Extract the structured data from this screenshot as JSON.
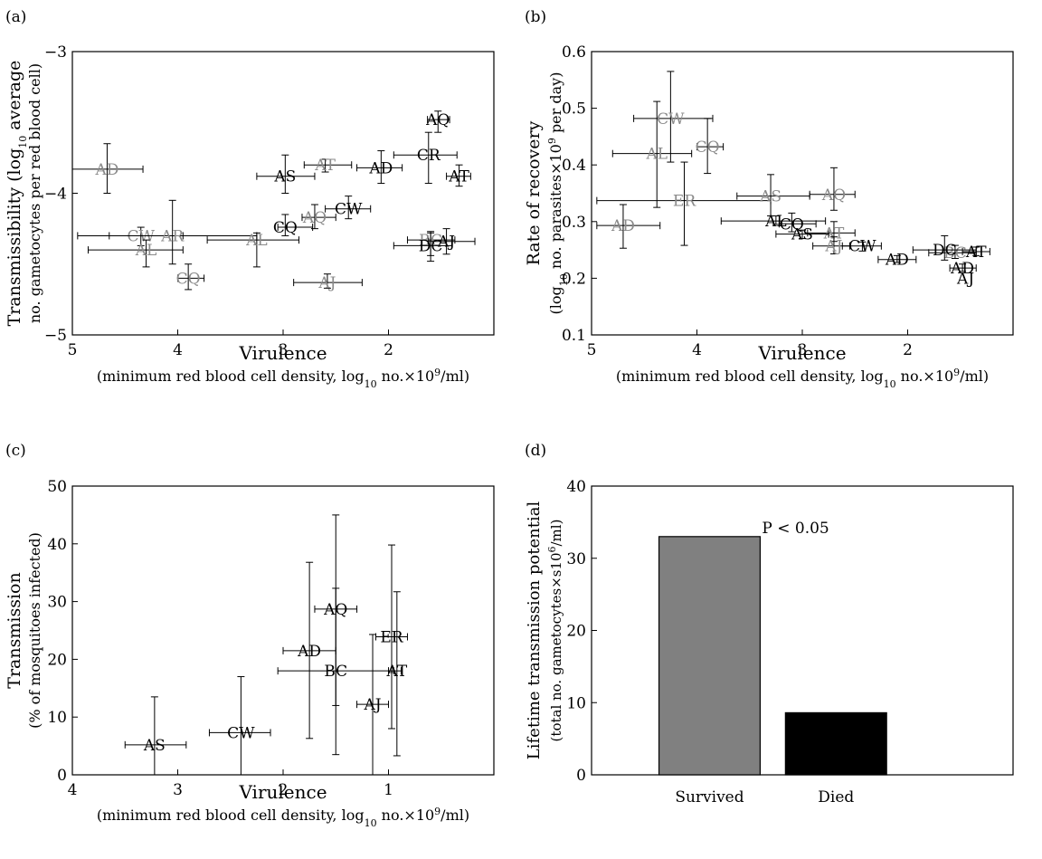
{
  "figure": {
    "panels": [
      "(a)",
      "(b)",
      "(c)",
      "(d)"
    ]
  },
  "colors": {
    "black": "#000000",
    "gray": "#8a8a8a",
    "bar_survived": "#808080",
    "bar_died": "#000000"
  },
  "chart_data": [
    {
      "panel": "(a)",
      "type": "scatter",
      "xlabel": "Virulence",
      "xlabel2_parts": [
        "(minimum red blood cell density, log",
        "10",
        " no.×10",
        "9",
        "/ml)"
      ],
      "ylabel_line1_parts": [
        "Transmissibility (log",
        "10",
        " average"
      ],
      "ylabel_line2": "no. gametocytes per red blood cell)",
      "xlim": [
        5,
        1
      ],
      "xreversed": true,
      "ylim": [
        -5,
        -3
      ],
      "xticks": [
        5,
        4,
        3,
        2
      ],
      "xticklabels": [
        "5",
        "4",
        "3",
        "2"
      ],
      "yticks": [
        -5,
        -4,
        -3
      ],
      "yticklabels": [
        "−5",
        "−4",
        "−3"
      ],
      "points": [
        {
          "label": "AD",
          "color": "gray",
          "x": 4.67,
          "y": -3.83,
          "xlo": 5.0,
          "xhi": 4.33,
          "ylo": -4.0,
          "yhi": -3.65
        },
        {
          "label": "CW",
          "color": "gray",
          "x": 4.35,
          "y": -4.3,
          "xlo": 4.65,
          "xhi": 3.95,
          "ylo": -4.37,
          "yhi": -4.24
        },
        {
          "label": "AR",
          "color": "gray",
          "x": 4.05,
          "y": -4.3,
          "xlo": 4.95,
          "xhi": 3.25,
          "ylo": -4.5,
          "yhi": -4.05
        },
        {
          "label": "AL",
          "color": "gray",
          "x": 4.3,
          "y": -4.4,
          "xlo": 4.85,
          "xhi": 3.95,
          "ylo": -4.52,
          "yhi": -4.33
        },
        {
          "label": "CQ",
          "color": "gray",
          "x": 3.9,
          "y": -4.6,
          "xlo": 4.0,
          "xhi": 3.75,
          "ylo": -4.68,
          "yhi": -4.5
        },
        {
          "label": "AL",
          "color": "gray",
          "x": 3.25,
          "y": -4.33,
          "xlo": 3.72,
          "xhi": 2.85,
          "ylo": -4.52,
          "yhi": -4.28
        },
        {
          "label": "AS",
          "color": "black",
          "x": 2.98,
          "y": -3.88,
          "xlo": 3.25,
          "xhi": 2.7,
          "ylo": -4.0,
          "yhi": -3.73
        },
        {
          "label": "CQ",
          "color": "black",
          "x": 2.98,
          "y": -4.24,
          "xlo": 3.05,
          "xhi": 2.72,
          "ylo": -4.3,
          "yhi": -4.15
        },
        {
          "label": "AQ",
          "color": "gray",
          "x": 2.7,
          "y": -4.17,
          "xlo": 2.82,
          "xhi": 2.5,
          "ylo": -4.25,
          "yhi": -4.08
        },
        {
          "label": "AT",
          "color": "gray",
          "x": 2.6,
          "y": -3.8,
          "xlo": 2.8,
          "xhi": 2.35,
          "ylo": -3.85,
          "yhi": -3.76
        },
        {
          "label": "CW",
          "color": "black",
          "x": 2.38,
          "y": -4.11,
          "xlo": 2.6,
          "xhi": 2.17,
          "ylo": -4.18,
          "yhi": -4.02
        },
        {
          "label": "AJ",
          "color": "gray",
          "x": 2.58,
          "y": -4.63,
          "xlo": 2.9,
          "xhi": 2.25,
          "ylo": -4.67,
          "yhi": -4.57
        },
        {
          "label": "AD",
          "color": "black",
          "x": 2.07,
          "y": -3.82,
          "xlo": 2.3,
          "xhi": 1.87,
          "ylo": -3.93,
          "yhi": -3.7
        },
        {
          "label": "CR",
          "color": "black",
          "x": 1.62,
          "y": -3.73,
          "xlo": 1.95,
          "xhi": 1.35,
          "ylo": -3.93,
          "yhi": -3.57
        },
        {
          "label": "AQ",
          "color": "black",
          "x": 1.53,
          "y": -3.48,
          "xlo": 1.63,
          "xhi": 1.42,
          "ylo": -3.57,
          "yhi": -3.42
        },
        {
          "label": "AT",
          "color": "black",
          "x": 1.33,
          "y": -3.88,
          "xlo": 1.45,
          "xhi": 1.22,
          "ylo": -3.95,
          "yhi": -3.8
        },
        {
          "label": "BC",
          "color": "gray",
          "x": 1.6,
          "y": -4.33,
          "xlo": 1.82,
          "xhi": 1.37,
          "ylo": -4.44,
          "yhi": -4.27
        },
        {
          "label": "AJ",
          "color": "black",
          "x": 1.45,
          "y": -4.34,
          "xlo": 1.62,
          "xhi": 1.18,
          "ylo": -4.43,
          "yhi": -4.25
        },
        {
          "label": "DC",
          "color": "black",
          "x": 1.6,
          "y": -4.37,
          "xlo": 1.95,
          "xhi": 1.4,
          "ylo": -4.48,
          "yhi": -4.28
        }
      ]
    },
    {
      "panel": "(b)",
      "type": "scatter",
      "xlabel": "Virulence",
      "xlabel2_parts": [
        "(minimum red blood cell density, log",
        "10",
        " no.×10",
        "9",
        "/ml)"
      ],
      "ylabel_line1": "Rate of recovery",
      "ylabel_line2_parts": [
        "(log",
        "10",
        " no. parasites×10",
        "9",
        " per day)"
      ],
      "xlim": [
        5,
        1
      ],
      "xreversed": true,
      "ylim": [
        0.1,
        0.6
      ],
      "xticks": [
        5,
        4,
        3,
        2
      ],
      "xticklabels": [
        "5",
        "4",
        "3",
        "2"
      ],
      "yticks": [
        0.1,
        0.2,
        0.3,
        0.4,
        0.5,
        0.6
      ],
      "yticklabels": [
        "0.1",
        "0.2",
        "0.3",
        "0.4",
        "0.5",
        "0.6"
      ],
      "points": [
        {
          "label": "CW",
          "color": "gray",
          "x": 4.25,
          "y": 0.482,
          "xlo": 4.6,
          "xhi": 3.85,
          "ylo": 0.405,
          "yhi": 0.565
        },
        {
          "label": "CQ",
          "color": "gray",
          "x": 3.9,
          "y": 0.432,
          "xlo": 4.0,
          "xhi": 3.75,
          "ylo": 0.385,
          "yhi": 0.482
        },
        {
          "label": "AL",
          "color": "gray",
          "x": 4.38,
          "y": 0.42,
          "xlo": 4.8,
          "xhi": 4.05,
          "ylo": 0.325,
          "yhi": 0.512
        },
        {
          "label": "ER",
          "color": "gray",
          "x": 4.12,
          "y": 0.337,
          "xlo": 4.95,
          "xhi": 3.3,
          "ylo": 0.258,
          "yhi": 0.405
        },
        {
          "label": "AS",
          "color": "gray",
          "x": 3.3,
          "y": 0.345,
          "xlo": 3.62,
          "xhi": 2.93,
          "ylo": 0.31,
          "yhi": 0.383
        },
        {
          "label": "AQ",
          "color": "gray",
          "x": 2.7,
          "y": 0.348,
          "xlo": 2.93,
          "xhi": 2.5,
          "ylo": 0.32,
          "yhi": 0.395
        },
        {
          "label": "AD",
          "color": "gray",
          "x": 4.7,
          "y": 0.293,
          "xlo": 4.95,
          "xhi": 4.35,
          "ylo": 0.253,
          "yhi": 0.33
        },
        {
          "label": "AL",
          "color": "black",
          "x": 3.25,
          "y": 0.301,
          "xlo": 3.77,
          "xhi": 2.78,
          "ylo": 0.295,
          "yhi": 0.31
        },
        {
          "label": "CQ",
          "color": "black",
          "x": 3.1,
          "y": 0.296,
          "xlo": 3.22,
          "xhi": 2.87,
          "ylo": 0.282,
          "yhi": 0.315
        },
        {
          "label": "AT",
          "color": "gray",
          "x": 2.7,
          "y": 0.28,
          "xlo": 2.95,
          "xhi": 2.5,
          "ylo": 0.265,
          "yhi": 0.3
        },
        {
          "label": "AS",
          "color": "black",
          "x": 3.0,
          "y": 0.278,
          "xlo": 3.25,
          "xhi": 2.75,
          "ylo": 0.27,
          "yhi": 0.285
        },
        {
          "label": "AJ",
          "color": "gray",
          "x": 2.7,
          "y": 0.257,
          "xlo": 2.9,
          "xhi": 2.55,
          "ylo": 0.243,
          "yhi": 0.273
        },
        {
          "label": "CW",
          "color": "black",
          "x": 2.43,
          "y": 0.257,
          "xlo": 2.62,
          "xhi": 2.25,
          "ylo": 0.248,
          "yhi": 0.264
        },
        {
          "label": "AD",
          "color": "black",
          "x": 2.1,
          "y": 0.233,
          "xlo": 2.28,
          "xhi": 1.92,
          "ylo": 0.228,
          "yhi": 0.24
        },
        {
          "label": "BC",
          "color": "gray",
          "x": 1.55,
          "y": 0.245,
          "xlo": 1.8,
          "xhi": 1.35,
          "ylo": 0.235,
          "yhi": 0.258
        },
        {
          "label": "DC",
          "color": "black",
          "x": 1.65,
          "y": 0.25,
          "xlo": 1.95,
          "xhi": 1.35,
          "ylo": 0.232,
          "yhi": 0.275
        },
        {
          "label": "AT",
          "color": "black",
          "x": 1.35,
          "y": 0.247,
          "xlo": 1.48,
          "xhi": 1.22,
          "ylo": 0.24,
          "yhi": 0.255
        },
        {
          "label": "AD",
          "color": "black",
          "x": 1.48,
          "y": 0.218,
          "xlo": 1.6,
          "xhi": 1.35,
          "ylo": 0.212,
          "yhi": 0.225
        },
        {
          "label": "AJ",
          "color": "black",
          "x": 1.45,
          "y": 0.2,
          "xlo": 1.45,
          "xhi": 1.45,
          "ylo": 0.2,
          "yhi": 0.2
        }
      ]
    },
    {
      "panel": "(c)",
      "type": "scatter",
      "xlabel": "Virulence",
      "xlabel2_parts": [
        "(minimum red blood cell density, log",
        "10",
        " no.×10",
        "9",
        "/ml)"
      ],
      "ylabel_line1": "Transmission",
      "ylabel_line2": "(% of mosquitoes infected)",
      "xlim": [
        4,
        0
      ],
      "xreversed": true,
      "ylim": [
        0,
        50
      ],
      "xticks": [
        4,
        3,
        2,
        1
      ],
      "xticklabels": [
        "4",
        "3",
        "2",
        "1"
      ],
      "yticks": [
        0,
        10,
        20,
        30,
        40,
        50
      ],
      "yticklabels": [
        "0",
        "10",
        "20",
        "30",
        "40",
        "50"
      ],
      "points": [
        {
          "label": "AS",
          "color": "black",
          "x": 3.22,
          "y": 5.2,
          "xlo": 3.5,
          "xhi": 2.92,
          "ylo": 0,
          "yhi": 13.5
        },
        {
          "label": "CW",
          "color": "black",
          "x": 2.4,
          "y": 7.3,
          "xlo": 2.7,
          "xhi": 2.12,
          "ylo": 0,
          "yhi": 17.0
        },
        {
          "label": "AD",
          "color": "black",
          "x": 1.75,
          "y": 21.5,
          "xlo": 2.0,
          "xhi": 1.5,
          "ylo": 6.3,
          "yhi": 36.8
        },
        {
          "label": "AQ",
          "color": "black",
          "x": 1.5,
          "y": 28.7,
          "xlo": 1.7,
          "xhi": 1.3,
          "ylo": 12.0,
          "yhi": 45.0
        },
        {
          "label": "BC",
          "color": "black",
          "x": 1.5,
          "y": 18.0,
          "xlo": 2.05,
          "xhi": 0.95,
          "ylo": 3.5,
          "yhi": 32.3
        },
        {
          "label": "ER",
          "color": "black",
          "x": 0.97,
          "y": 23.9,
          "xlo": 1.12,
          "xhi": 0.82,
          "ylo": 8.0,
          "yhi": 39.8
        },
        {
          "label": "AT",
          "color": "black",
          "x": 0.92,
          "y": 18.0,
          "xlo": 1.0,
          "xhi": 0.88,
          "ylo": 3.3,
          "yhi": 31.7
        },
        {
          "label": "AJ",
          "color": "black",
          "x": 1.15,
          "y": 12.2,
          "xlo": 1.3,
          "xhi": 1.0,
          "ylo": 0,
          "yhi": 24.3
        }
      ]
    },
    {
      "panel": "(d)",
      "type": "bar",
      "categories": [
        "Survived",
        "Died"
      ],
      "values": [
        33.0,
        8.6
      ],
      "bar_colors": [
        "#808080",
        "#000000"
      ],
      "ylabel_line1": "Lifetime transmission potential",
      "ylabel_line2_parts": [
        "(total no. gametocytes×s10",
        "6",
        "/ml)"
      ],
      "ylim": [
        0,
        40
      ],
      "yticks": [
        0,
        10,
        20,
        30,
        40
      ],
      "yticklabels": [
        "0",
        "10",
        "20",
        "30",
        "40"
      ],
      "annotation": "P < 0.05"
    }
  ]
}
